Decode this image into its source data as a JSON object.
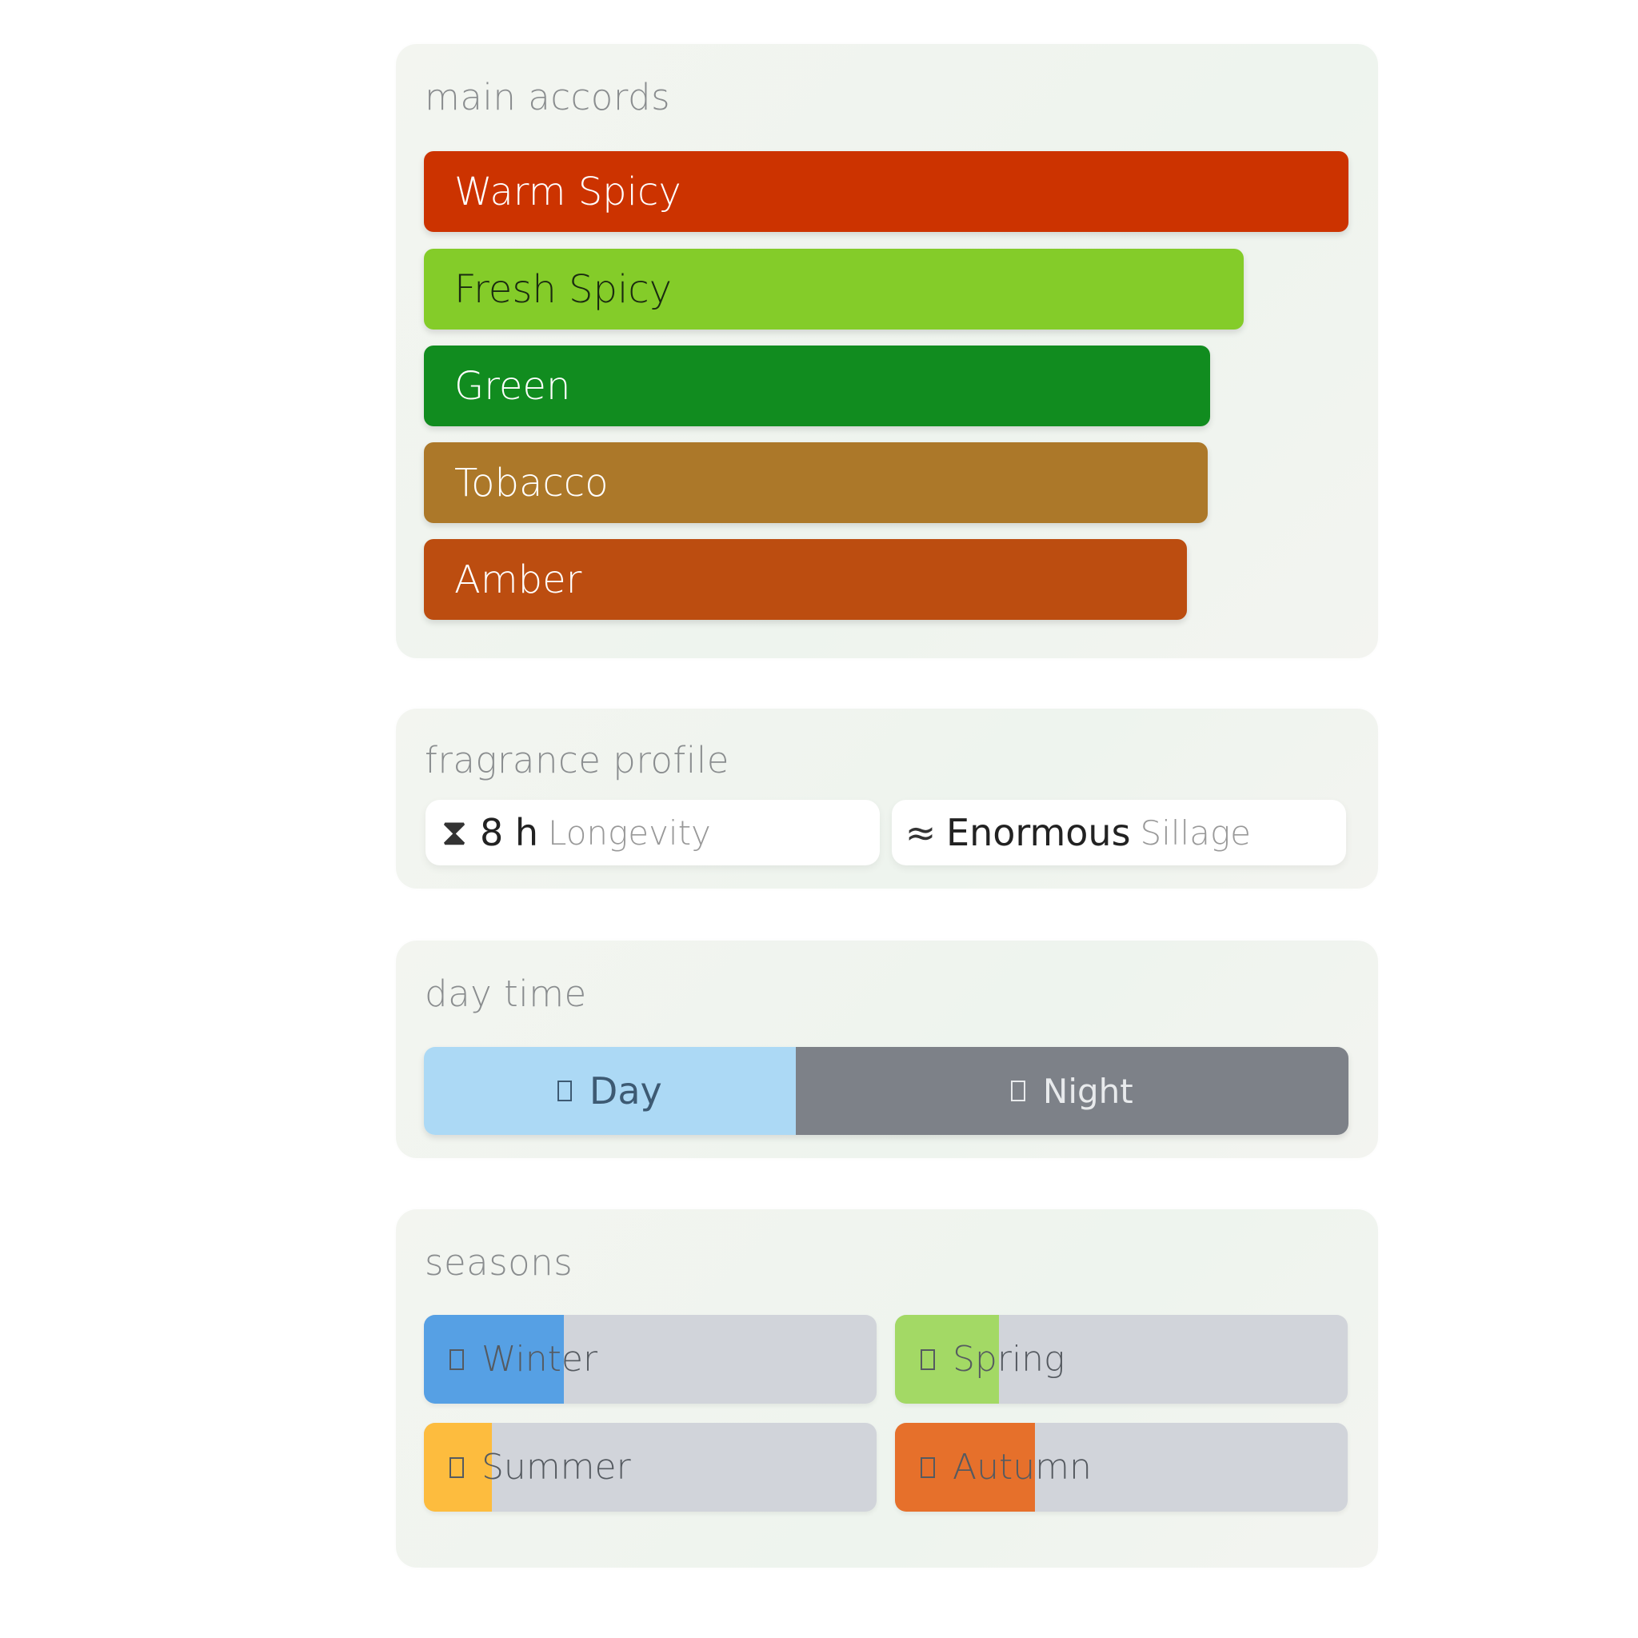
{
  "main_accords": {
    "title": "main accords",
    "items": [
      {
        "label": "Warm Spicy",
        "percent": 100,
        "color": "#cc3300",
        "text_color": "#ffffff"
      },
      {
        "label": "Fresh Spicy",
        "percent": 88.7,
        "color": "#84cc29",
        "text_color": "#1a2a10"
      },
      {
        "label": "Green",
        "percent": 85,
        "color": "#118c1f",
        "text_color": "#ffffff"
      },
      {
        "label": "Tobacco",
        "percent": 84.8,
        "color": "#ac7829",
        "text_color": "#ffffff"
      },
      {
        "label": "Amber",
        "percent": 82.5,
        "color": "#bc4d10",
        "text_color": "#ffffff"
      }
    ]
  },
  "fragrance_profile": {
    "title": "fragrance profile",
    "longevity": {
      "icon": "hourglass-icon",
      "value": "8 h",
      "label": "Longevity"
    },
    "sillage": {
      "icon": "waves-icon",
      "value": "Enormous",
      "label": "Sillage"
    }
  },
  "day_time": {
    "title": "day time",
    "day": {
      "label": "Day",
      "percent": 40.2,
      "color": "#acd9f5"
    },
    "night": {
      "label": "Night",
      "percent": 59.8,
      "color": "#7d8188"
    }
  },
  "seasons": {
    "title": "seasons",
    "track_color": "#d1d4da",
    "items": [
      {
        "label": "Winter",
        "percent": 31,
        "color": "#56a0e4"
      },
      {
        "label": "Spring",
        "percent": 23,
        "color": "#a3d965"
      },
      {
        "label": "Summer",
        "percent": 15,
        "color": "#fdbc3e"
      },
      {
        "label": "Autumn",
        "percent": 31,
        "color": "#e6702b"
      }
    ]
  }
}
